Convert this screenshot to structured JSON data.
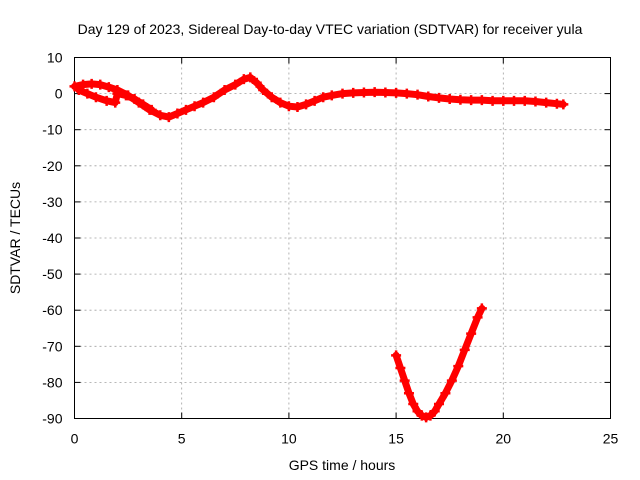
{
  "chart_data": {
    "type": "scatter",
    "title": "Day 129 of 2023, Sidereal Day-to-day VTEC variation (SDTVAR) for receiver yula",
    "xlabel": "GPS time / hours",
    "ylabel": "SDTVAR / TECUs",
    "xlim": [
      0,
      25
    ],
    "ylim": [
      -90,
      10
    ],
    "xticks": [
      0,
      5,
      10,
      15,
      20,
      25
    ],
    "yticks": [
      10,
      0,
      -10,
      -20,
      -30,
      -40,
      -50,
      -60,
      -70,
      -80,
      -90
    ],
    "grid": true,
    "marker": "plus",
    "series": [
      {
        "name": "main-track",
        "color": "#ff0000",
        "points": [
          [
            0.0,
            2.0
          ],
          [
            0.4,
            2.5
          ],
          [
            0.8,
            2.7
          ],
          [
            1.2,
            2.5
          ],
          [
            1.6,
            1.8
          ],
          [
            2.0,
            1.0
          ],
          [
            2.5,
            -0.5
          ],
          [
            3.0,
            -2.5
          ],
          [
            3.5,
            -4.5
          ],
          [
            4.0,
            -6.0
          ],
          [
            4.4,
            -6.5
          ],
          [
            4.8,
            -5.5
          ],
          [
            5.2,
            -4.5
          ],
          [
            5.6,
            -3.5
          ],
          [
            6.0,
            -2.5
          ],
          [
            6.5,
            -1.0
          ],
          [
            7.0,
            1.0
          ],
          [
            7.5,
            2.5
          ],
          [
            7.9,
            4.0
          ],
          [
            8.2,
            4.5
          ],
          [
            8.5,
            3.0
          ],
          [
            8.8,
            1.0
          ],
          [
            9.2,
            -1.0
          ],
          [
            9.6,
            -2.5
          ],
          [
            10.0,
            -3.5
          ],
          [
            10.4,
            -3.7
          ],
          [
            10.8,
            -3.0
          ],
          [
            11.2,
            -2.0
          ],
          [
            11.6,
            -1.0
          ],
          [
            12.0,
            -0.5
          ],
          [
            12.5,
            0.0
          ],
          [
            13.0,
            0.2
          ],
          [
            13.5,
            0.3
          ],
          [
            14.0,
            0.4
          ],
          [
            14.5,
            0.3
          ],
          [
            15.0,
            0.2
          ],
          [
            15.5,
            0.0
          ],
          [
            16.0,
            -0.3
          ],
          [
            16.5,
            -0.8
          ],
          [
            17.0,
            -1.2
          ],
          [
            17.5,
            -1.5
          ],
          [
            18.0,
            -1.7
          ],
          [
            18.5,
            -1.8
          ],
          [
            19.0,
            -1.8
          ],
          [
            19.5,
            -2.0
          ],
          [
            20.0,
            -2.0
          ],
          [
            20.5,
            -2.0
          ],
          [
            21.0,
            -2.0
          ],
          [
            21.5,
            -2.2
          ],
          [
            22.0,
            -2.5
          ],
          [
            22.5,
            -2.8
          ],
          [
            22.8,
            -3.0
          ]
        ]
      },
      {
        "name": "early-branch",
        "color": "#ff0000",
        "points": [
          [
            0.2,
            1.0
          ],
          [
            0.6,
            0.0
          ],
          [
            1.0,
            -1.0
          ],
          [
            1.5,
            -2.0
          ],
          [
            1.9,
            -2.5
          ],
          [
            2.0,
            0.0
          ],
          [
            2.4,
            -0.5
          ],
          [
            2.8,
            -1.5
          ],
          [
            3.2,
            -3.0
          ],
          [
            3.6,
            -4.5
          ]
        ]
      },
      {
        "name": "v-dip",
        "color": "#ff0000",
        "points": [
          [
            15.0,
            -72.5
          ],
          [
            15.2,
            -76.0
          ],
          [
            15.4,
            -79.5
          ],
          [
            15.6,
            -83.0
          ],
          [
            15.8,
            -86.0
          ],
          [
            16.0,
            -88.0
          ],
          [
            16.2,
            -89.2
          ],
          [
            16.4,
            -89.7
          ],
          [
            16.6,
            -89.2
          ],
          [
            16.8,
            -88.0
          ],
          [
            17.0,
            -86.0
          ],
          [
            17.3,
            -83.0
          ],
          [
            17.6,
            -79.5
          ],
          [
            17.9,
            -75.5
          ],
          [
            18.2,
            -71.0
          ],
          [
            18.5,
            -66.5
          ],
          [
            18.8,
            -62.0
          ],
          [
            19.0,
            -59.5
          ]
        ]
      }
    ]
  }
}
